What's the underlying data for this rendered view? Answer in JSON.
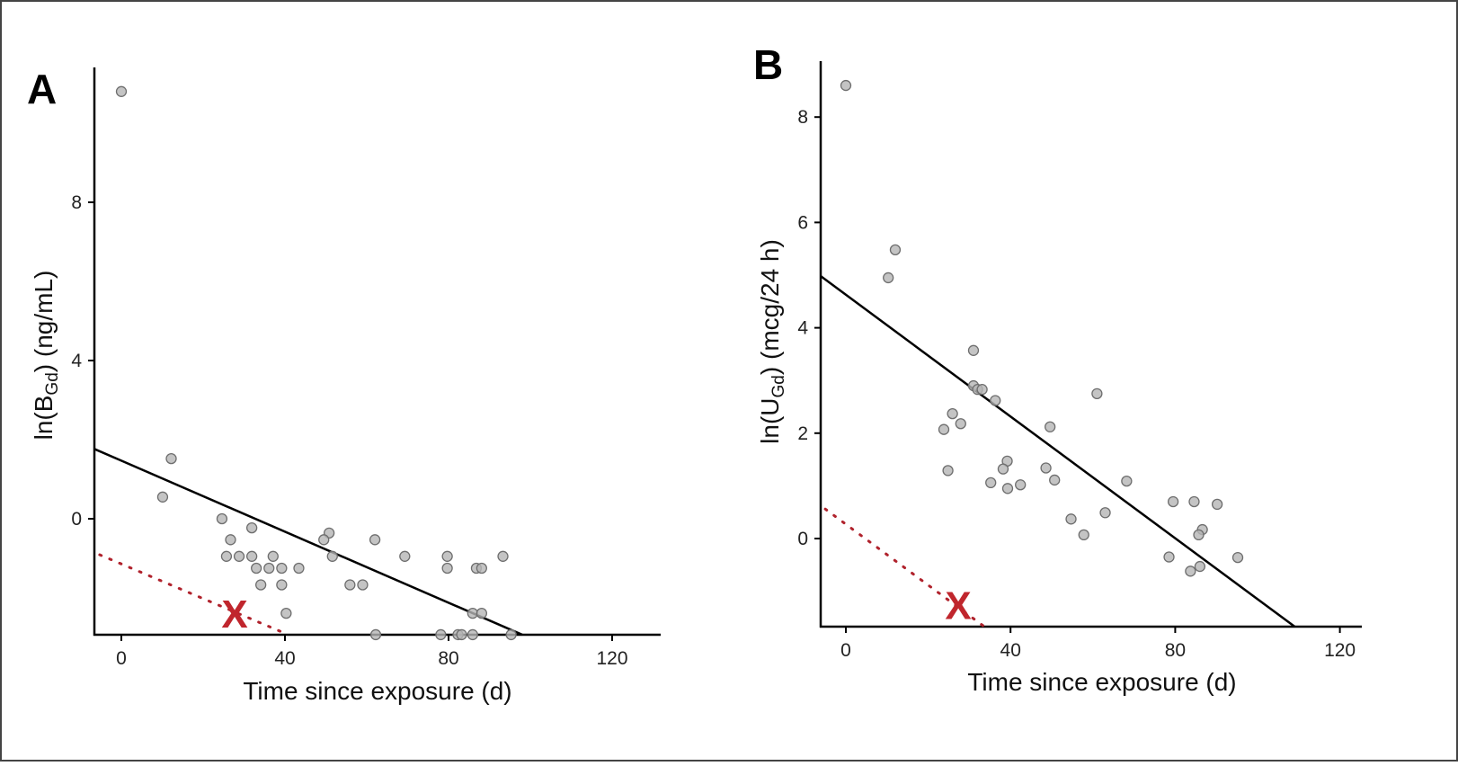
{
  "chart_data": [
    {
      "type": "scatter",
      "panel_label": "A",
      "xlabel": "Time since exposure (d)",
      "ylabel": {
        "prefix": "ln(",
        "main": "B",
        "sub": "Gd",
        "suffix": ") (ng/mL)"
      },
      "xlim": [
        -6.5,
        132
      ],
      "ylim": [
        -2.93,
        11.5
      ],
      "xticks": [
        0,
        40,
        80,
        120
      ],
      "yticks": [
        0,
        4,
        8
      ],
      "grid": false,
      "point_color": "#b5b5b5",
      "points": [
        [
          0,
          10.8
        ],
        [
          12.2,
          1.52
        ],
        [
          10.1,
          0.55
        ],
        [
          24.6,
          0
        ],
        [
          31.9,
          -0.23
        ],
        [
          26.7,
          -0.53
        ],
        [
          25.7,
          -0.95
        ],
        [
          28.8,
          -0.95
        ],
        [
          31.9,
          -0.95
        ],
        [
          37.1,
          -0.95
        ],
        [
          33,
          -1.25
        ],
        [
          36.1,
          -1.25
        ],
        [
          39.2,
          -1.25
        ],
        [
          43.4,
          -1.25
        ],
        [
          34.1,
          -1.67
        ],
        [
          39.2,
          -1.67
        ],
        [
          50.8,
          -0.36
        ],
        [
          49.5,
          -0.53
        ],
        [
          51.6,
          -0.95
        ],
        [
          62,
          -0.53
        ],
        [
          69.3,
          -0.95
        ],
        [
          55.9,
          -1.67
        ],
        [
          59,
          -1.67
        ],
        [
          79.7,
          -0.95
        ],
        [
          79.7,
          -1.25
        ],
        [
          86.8,
          -1.25
        ],
        [
          88.1,
          -1.25
        ],
        [
          93.3,
          -0.95
        ],
        [
          40.3,
          -2.39
        ],
        [
          85.9,
          -2.39
        ],
        [
          88.1,
          -2.39
        ],
        [
          62.2,
          -2.93
        ],
        [
          78.1,
          -2.93
        ],
        [
          82.3,
          -2.93
        ],
        [
          83.2,
          -2.93
        ],
        [
          85.9,
          -2.93
        ],
        [
          95.3,
          -2.93
        ]
      ],
      "fit_line": {
        "color": "#000000",
        "from": [
          -6.5,
          1.76
        ],
        "to": [
          98,
          -2.93
        ]
      },
      "threshold_line": {
        "color": "#b0222c",
        "style": "dotted",
        "from": [
          -5.3,
          -0.91
        ],
        "to": [
          40.8,
          -2.93
        ]
      },
      "marker": {
        "text": "X",
        "color": "#c0262d",
        "at": [
          27.7,
          -2.39
        ]
      }
    },
    {
      "type": "scatter",
      "panel_label": "B",
      "xlabel": "Time since exposure (d)",
      "ylabel": {
        "prefix": "ln(",
        "main": "U",
        "sub": "Gd",
        "suffix": ") (mcg/24 h)"
      },
      "xlim": [
        -6.1,
        125
      ],
      "ylim": [
        -1.67,
        9.06
      ],
      "xticks": [
        0,
        40,
        80,
        120
      ],
      "yticks": [
        0,
        2,
        4,
        6,
        8
      ],
      "grid": false,
      "point_color": "#b5b5b5",
      "points": [
        [
          0,
          8.6
        ],
        [
          10.3,
          4.95
        ],
        [
          12,
          5.48
        ],
        [
          31,
          3.57
        ],
        [
          31,
          2.9
        ],
        [
          32,
          2.83
        ],
        [
          33.1,
          2.83
        ],
        [
          36.3,
          2.62
        ],
        [
          25.9,
          2.37
        ],
        [
          27.9,
          2.18
        ],
        [
          23.8,
          2.07
        ],
        [
          61,
          2.75
        ],
        [
          49.6,
          2.12
        ],
        [
          39.2,
          1.47
        ],
        [
          38.2,
          1.32
        ],
        [
          24.8,
          1.29
        ],
        [
          48.6,
          1.34
        ],
        [
          50.7,
          1.11
        ],
        [
          35.2,
          1.06
        ],
        [
          39.3,
          0.95
        ],
        [
          42.4,
          1.02
        ],
        [
          68.2,
          1.09
        ],
        [
          54.7,
          0.37
        ],
        [
          63,
          0.49
        ],
        [
          57.8,
          0.07
        ],
        [
          79.5,
          0.7
        ],
        [
          84.6,
          0.7
        ],
        [
          86.6,
          0.17
        ],
        [
          85.7,
          0.07
        ],
        [
          78.5,
          -0.35
        ],
        [
          83.7,
          -0.62
        ],
        [
          86,
          -0.53
        ],
        [
          90.2,
          0.65
        ],
        [
          95.2,
          -0.36
        ]
      ],
      "fit_line": {
        "color": "#000000",
        "from": [
          -6.1,
          4.98
        ],
        "to": [
          109,
          -1.67
        ]
      },
      "threshold_line": {
        "color": "#b0222c",
        "style": "dotted",
        "from": [
          -5,
          0.56
        ],
        "to": [
          33.6,
          -1.67
        ]
      },
      "marker": {
        "text": "X",
        "color": "#c0262d",
        "at": [
          27.3,
          -1.25
        ]
      }
    }
  ]
}
